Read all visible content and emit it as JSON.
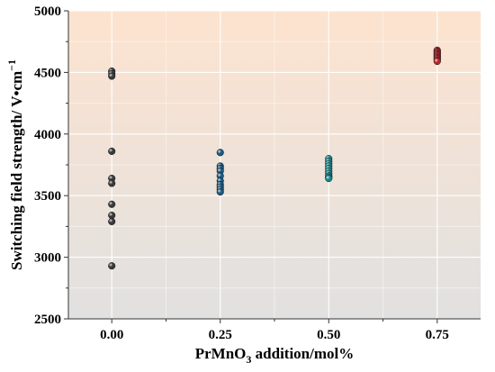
{
  "chart_data": {
    "type": "scatter",
    "xlabel": {
      "prefix": "PrMnO",
      "sub": "3",
      "suffix": " addition/mol%"
    },
    "ylabel": {
      "main": "Switching field strength/ V•cm",
      "sup": "−1"
    },
    "x_ticks": [
      "0.00",
      "0.25",
      "0.50",
      "0.75"
    ],
    "x_tick_values": [
      0.0,
      0.25,
      0.5,
      0.75
    ],
    "y_ticks": [
      "2500",
      "3000",
      "3500",
      "4000",
      "4500",
      "5000"
    ],
    "y_tick_values": [
      2500,
      3000,
      3500,
      4000,
      4500,
      5000
    ],
    "xlim": [
      -0.1,
      0.85
    ],
    "ylim": [
      2500,
      5000
    ],
    "grid": true,
    "background_gradient": {
      "top": "#fde3cf",
      "bottom": "#e1e1e1"
    },
    "series": [
      {
        "x": 0.0,
        "color": "#3a3a3a",
        "values": [
          4510,
          4490,
          4470,
          3860,
          3640,
          3600,
          3430,
          3340,
          3290,
          2930
        ]
      },
      {
        "x": 0.25,
        "color": "#1d5a82",
        "values": [
          3850,
          3740,
          3720,
          3700,
          3660,
          3620,
          3590,
          3570,
          3550,
          3530
        ]
      },
      {
        "x": 0.5,
        "color": "#18878d",
        "values": [
          3800,
          3780,
          3760,
          3740,
          3720,
          3700,
          3680,
          3660,
          3650,
          3640
        ]
      },
      {
        "x": 0.75,
        "color": "#bf2329",
        "values": [
          4680,
          4670,
          4660,
          4650,
          4640,
          4630,
          4620,
          4610,
          4600,
          4590
        ]
      }
    ]
  }
}
